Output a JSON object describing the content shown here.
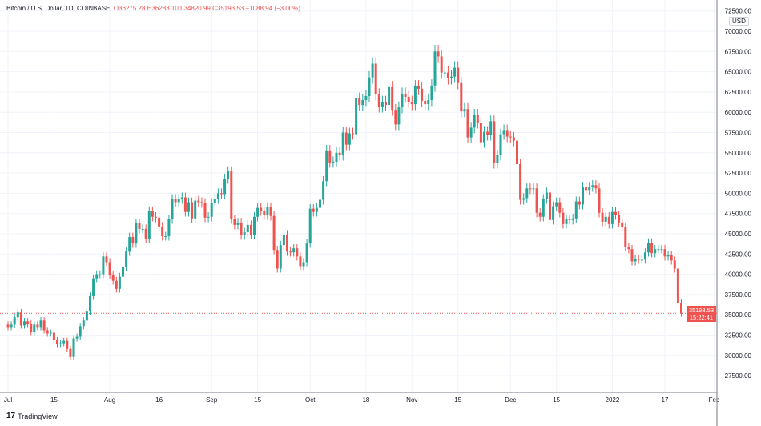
{
  "header": {
    "symbol": "Bitcoin / U.S. Dollar, 1D, COINBASE",
    "open": "O36275.28",
    "high": "H36283.10",
    "low": "L34820.99",
    "close": "C35193.53",
    "change": "−1088.94 (−3.00%)"
  },
  "currency": "USD",
  "last_price": {
    "price": "35193.53",
    "countdown": "15:22:41"
  },
  "brand": "TradingView",
  "colors": {
    "up": "#26a69a",
    "down": "#ef5350"
  },
  "chart_data": {
    "type": "candlestick",
    "title": "Bitcoin / U.S. Dollar, 1D, COINBASE",
    "start_date": "2021-07-01",
    "interval": "1D",
    "closes": [
      33.5,
      33.8,
      34.7,
      35.3,
      33.7,
      34.2,
      33.9,
      32.9,
      33.8,
      33.5,
      34.3,
      33.1,
      32.7,
      32.8,
      31.9,
      31.4,
      31.5,
      31.8,
      30.8,
      29.8,
      32.1,
      32.3,
      33.6,
      34.3,
      35.4,
      37.3,
      39.5,
      40.0,
      40.0,
      42.2,
      41.5,
      39.9,
      39.2,
      38.2,
      39.7,
      40.9,
      42.8,
      44.6,
      43.8,
      46.3,
      45.6,
      45.6,
      44.4,
      47.8,
      47.1,
      47.0,
      45.9,
      44.7,
      44.7,
      46.8,
      49.3,
      48.9,
      49.3,
      49.5,
      47.7,
      48.9,
      46.9,
      49.1,
      48.9,
      48.8,
      47.0,
      47.1,
      48.8,
      49.3,
      50.0,
      49.9,
      51.8,
      52.7,
      46.8,
      46.1,
      46.4,
      44.8,
      45.2,
      46.1,
      44.9,
      47.1,
      48.2,
      47.8,
      47.3,
      48.3,
      47.2,
      43.0,
      40.7,
      43.6,
      44.9,
      42.8,
      42.7,
      43.2,
      42.2,
      41.0,
      41.5,
      43.8,
      48.1,
      47.7,
      48.2,
      49.2,
      51.5,
      55.3,
      53.8,
      53.9,
      55.0,
      54.7,
      57.5,
      56.0,
      57.4,
      57.3,
      61.7,
      60.9,
      61.5,
      62.0,
      64.3,
      66.0,
      62.2,
      60.7,
      61.3,
      60.9,
      63.1,
      60.3,
      58.5,
      60.6,
      62.3,
      61.9,
      61.3,
      61.0,
      63.2,
      62.9,
      61.4,
      61.0,
      61.5,
      63.3,
      67.5,
      66.9,
      64.9,
      64.9,
      64.2,
      64.4,
      65.5,
      63.6,
      60.1,
      60.4,
      56.9,
      58.1,
      59.7,
      58.7,
      56.3,
      57.6,
      57.2,
      58.9,
      53.7,
      54.7,
      57.3,
      57.8,
      57.0,
      56.9,
      56.5,
      53.6,
      49.2,
      49.4,
      50.6,
      50.5,
      50.6,
      47.6,
      47.1,
      49.3,
      50.1,
      46.7,
      48.4,
      48.9,
      47.6,
      46.2,
      46.8,
      46.7,
      46.9,
      49.0,
      48.6,
      50.8,
      50.4,
      50.8,
      51.0,
      50.6,
      47.6,
      46.5,
      47.1,
      46.2,
      47.7,
      47.3,
      46.4,
      45.8,
      43.4,
      43.1,
      41.6,
      41.9,
      41.8,
      41.8,
      42.7,
      43.9,
      42.6,
      43.1,
      43.1,
      43.1,
      42.2,
      42.4,
      41.7,
      40.7,
      36.5,
      35.2
    ],
    "closes_unit": "thousand USD",
    "y_ticks": [
      "27500.00",
      "30000.00",
      "32500.00",
      "35000.00",
      "37500.00",
      "40000.00",
      "42500.00",
      "45000.00",
      "47500.00",
      "50000.00",
      "52500.00",
      "55000.00",
      "57500.00",
      "60000.00",
      "62500.00",
      "65000.00",
      "67500.00",
      "70000.00",
      "72500.00"
    ],
    "x_ticks": [
      "Jul",
      "15",
      "Aug",
      "16",
      "Sep",
      "15",
      "Oct",
      "18",
      "Nov",
      "15",
      "Dec",
      "15",
      "2022",
      "17",
      "Feb"
    ],
    "x_tick_days": [
      0,
      14,
      31,
      46,
      62,
      76,
      92,
      109,
      123,
      137,
      153,
      167,
      184,
      200,
      215
    ],
    "ylim": [
      25000,
      72500
    ],
    "grid": true
  }
}
